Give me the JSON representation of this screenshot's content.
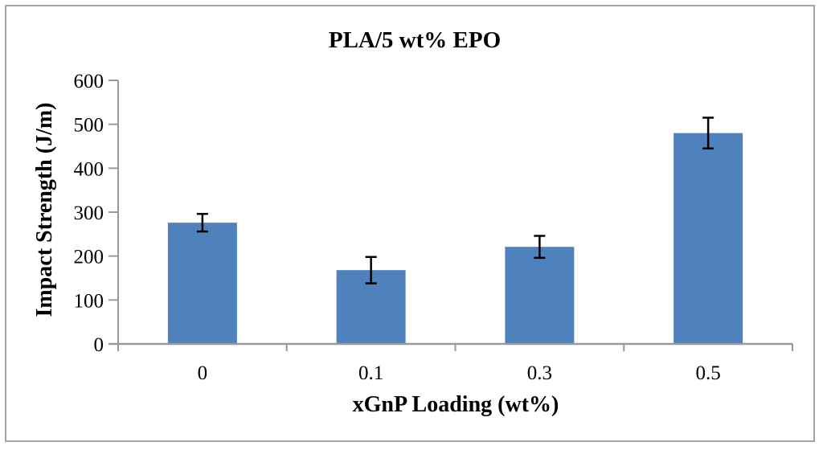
{
  "figure": {
    "background": "#ffffff",
    "border_color": "#a3a3a3"
  },
  "chart_data": {
    "type": "bar",
    "title": "PLA/5 wt% EPO",
    "xlabel": "xGnP Loading (wt%)",
    "ylabel": "Impact Strength (J/m)",
    "categories": [
      "0",
      "0.1",
      "0.3",
      "0.5"
    ],
    "values": [
      276,
      168,
      221,
      480
    ],
    "error_bars": [
      20,
      30,
      25,
      35
    ],
    "ylim": [
      0,
      600
    ],
    "yticks": [
      0,
      100,
      200,
      300,
      400,
      500,
      600
    ],
    "grid": false,
    "legend_position": "none",
    "bar_color": "#4f81bd",
    "error_bar_color": "#000000",
    "axis_color": "#999999",
    "text_color": "#000000"
  }
}
